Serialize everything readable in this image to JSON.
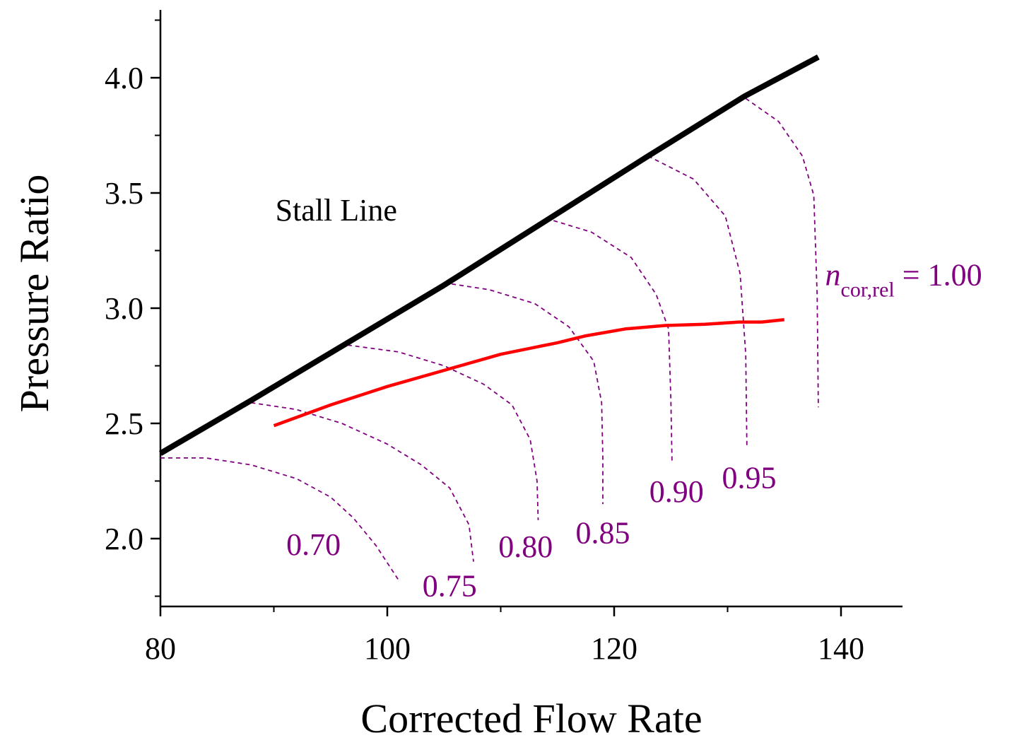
{
  "chart_data": {
    "type": "line",
    "xlabel": "Corrected Flow Rate",
    "ylabel": "Pressure Ratio",
    "xlim": [
      80,
      145
    ],
    "ylim": [
      1.7,
      4.3
    ],
    "xticks": [
      80,
      100,
      120,
      140
    ],
    "xtick_labels": [
      "80",
      "100",
      "120",
      "140"
    ],
    "x_minor_step": 10,
    "yticks": [
      2.0,
      2.5,
      3.0,
      3.5,
      4.0
    ],
    "ytick_labels": [
      "2.0",
      "2.5",
      "3.0",
      "3.5",
      "4.0"
    ],
    "y_minor_step": 0.25,
    "stall_line": {
      "label": "Stall Line",
      "color": "#000000",
      "x": [
        80,
        88,
        96.5,
        105,
        114,
        123,
        131.5,
        138
      ],
      "y": [
        2.37,
        2.6,
        2.85,
        3.1,
        3.38,
        3.66,
        3.92,
        4.09
      ]
    },
    "operating_line": {
      "color": "#ff0000",
      "x": [
        90,
        95,
        100,
        105,
        110,
        115,
        117.5,
        121,
        124.5,
        128,
        131,
        133,
        135
      ],
      "y": [
        2.49,
        2.58,
        2.66,
        2.73,
        2.8,
        2.85,
        2.88,
        2.91,
        2.925,
        2.93,
        2.94,
        2.94,
        2.95
      ]
    },
    "speed_lines": {
      "color": "#800080",
      "series": [
        {
          "name": "0.70",
          "x": [
            80,
            84,
            88,
            92,
            95,
            97,
            99,
            101
          ],
          "y": [
            2.35,
            2.35,
            2.32,
            2.26,
            2.18,
            2.09,
            1.97,
            1.82
          ]
        },
        {
          "name": "0.75",
          "x": [
            88,
            92,
            96,
            100,
            103,
            105.5,
            107.2,
            107.6
          ],
          "y": [
            2.59,
            2.56,
            2.5,
            2.41,
            2.32,
            2.22,
            2.06,
            1.9
          ]
        },
        {
          "name": "0.80",
          "x": [
            96.5,
            101,
            105,
            108.5,
            111,
            112.6,
            113.2,
            113.3
          ],
          "y": [
            2.84,
            2.81,
            2.75,
            2.67,
            2.58,
            2.43,
            2.25,
            2.08
          ]
        },
        {
          "name": "0.85",
          "x": [
            105,
            109,
            113,
            116,
            118.2,
            118.9,
            119,
            119
          ],
          "y": [
            3.11,
            3.08,
            3.02,
            2.92,
            2.77,
            2.59,
            2.35,
            2.15
          ]
        },
        {
          "name": "0.90",
          "x": [
            114,
            118,
            121.5,
            123.7,
            124.8,
            125,
            125.1
          ],
          "y": [
            3.39,
            3.33,
            3.22,
            3.06,
            2.91,
            2.6,
            2.33
          ]
        },
        {
          "name": "0.95",
          "x": [
            123,
            127,
            129.8,
            131.1,
            131.6,
            131.7
          ],
          "y": [
            3.66,
            3.56,
            3.4,
            3.15,
            2.8,
            2.4
          ]
        },
        {
          "name": "1.00",
          "x": [
            131.6,
            134.5,
            136.6,
            137.6,
            137.9,
            138
          ],
          "y": [
            3.91,
            3.81,
            3.66,
            3.49,
            3.05,
            2.57
          ]
        }
      ]
    },
    "speed_labels": [
      {
        "text": "0.70",
        "x": 93.5,
        "y": 1.93
      },
      {
        "text": "0.75",
        "x": 105.5,
        "y": 1.75
      },
      {
        "text": "0.80",
        "x": 112.2,
        "y": 1.92
      },
      {
        "text": "0.85",
        "x": 119,
        "y": 1.98
      },
      {
        "text": "0.90",
        "x": 125.5,
        "y": 2.16
      },
      {
        "text": "0.95",
        "x": 131.9,
        "y": 2.22
      }
    ],
    "annotations": [
      {
        "id": "stall-line-label",
        "text": "Stall Line",
        "x": 95.5,
        "y": 3.38
      },
      {
        "id": "ncor-label",
        "symbol": "n",
        "subscript": "cor,rel",
        "text": " = 1.00",
        "x": 138.6,
        "y": 3.1
      }
    ]
  }
}
